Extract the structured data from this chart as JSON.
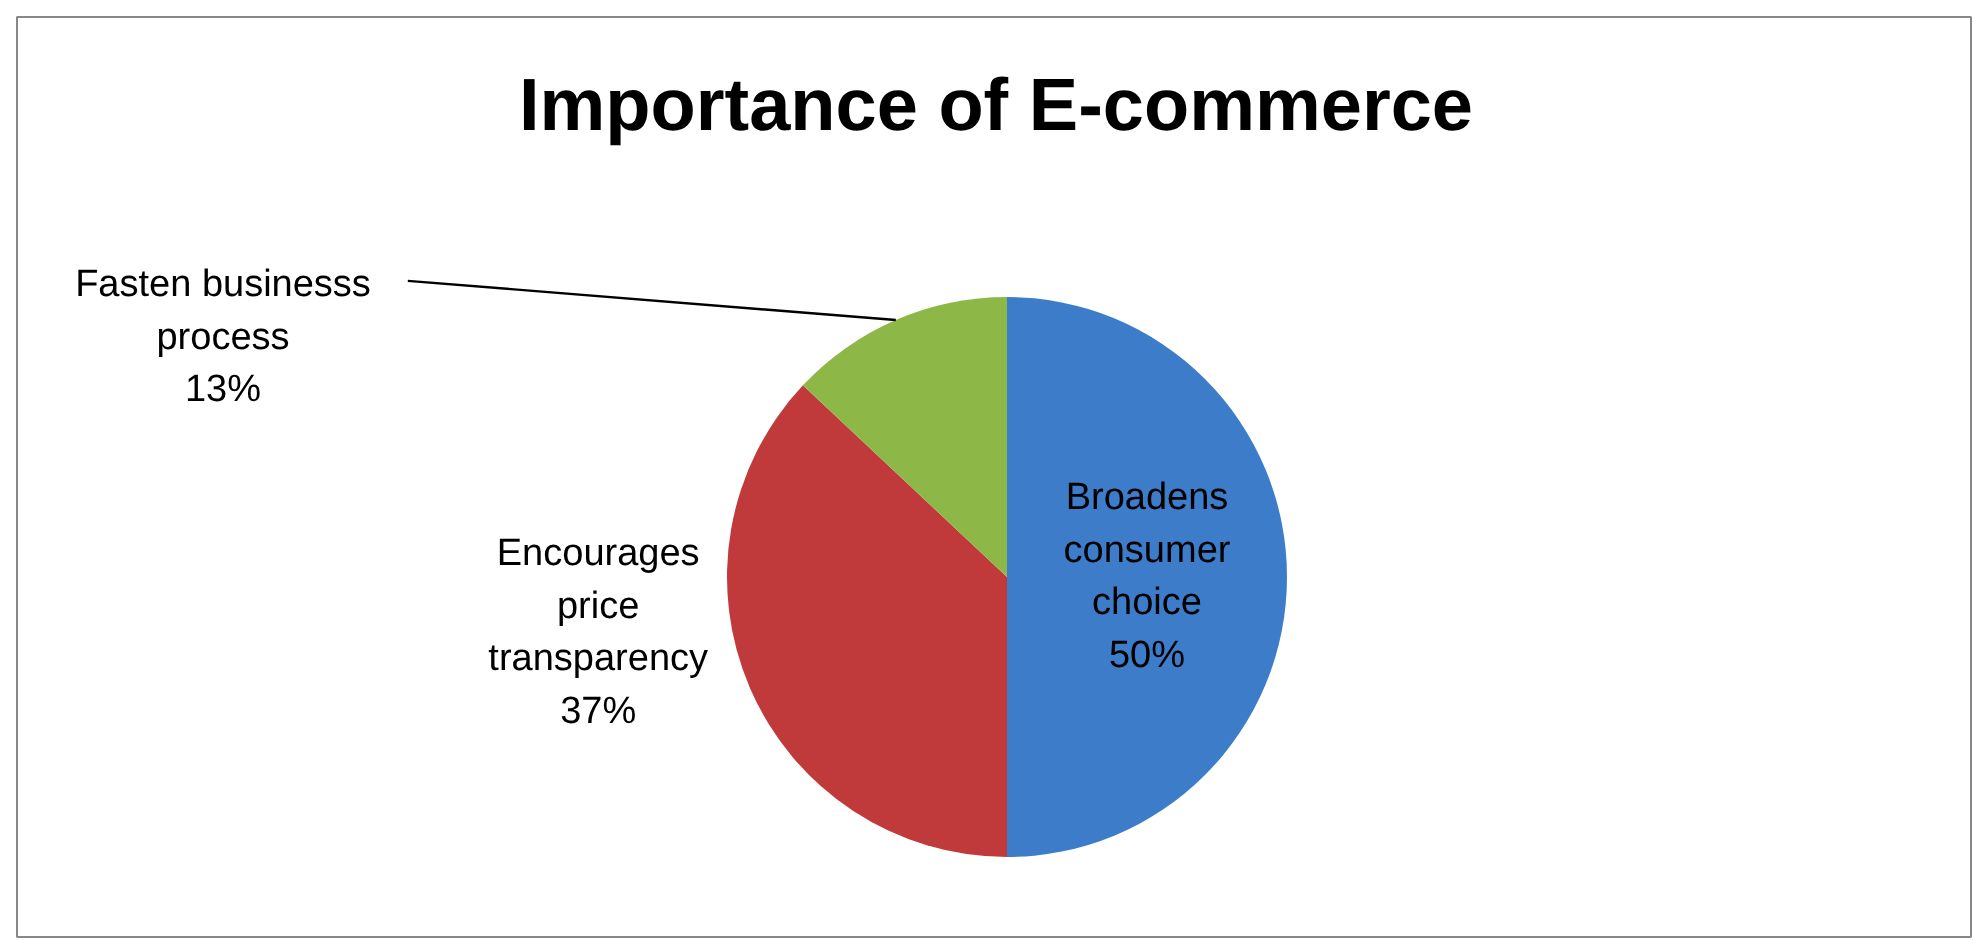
{
  "chart_data": {
    "type": "pie",
    "title": "Importance of E-commerce",
    "categories": [
      "Broadens consumer choice",
      "Encourages price transparency",
      "Fasten businesss process"
    ],
    "values": [
      50,
      37,
      13
    ],
    "colors": [
      "#3d7cc9",
      "#c0393b",
      "#8db848"
    ],
    "value_labels": [
      "50%",
      "37%",
      "13%"
    ]
  }
}
